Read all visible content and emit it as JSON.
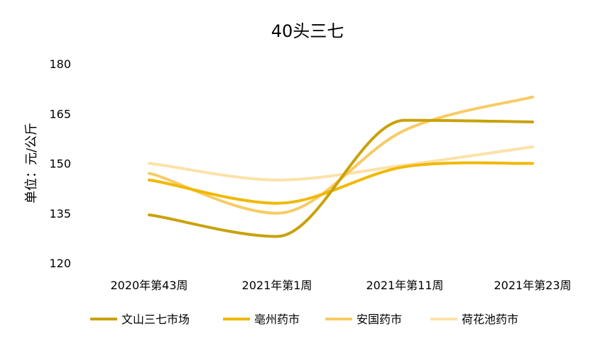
{
  "chart_data": {
    "type": "line",
    "title": "40头三七",
    "ylabel": "单位：元/公斤",
    "xlabel": "",
    "ylim": [
      120,
      180
    ],
    "yticks": [
      120,
      135,
      150,
      165,
      180
    ],
    "categories": [
      "2020年第43周",
      "2021年第1周",
      "2021年第11周",
      "2021年第23周"
    ],
    "grid": false,
    "legend_position": "bottom",
    "smooth": true,
    "series": [
      {
        "name": "文山三七市场",
        "color": "#c9a20a",
        "values": [
          134.5,
          128.0,
          163.0,
          162.5
        ]
      },
      {
        "name": "亳州药市",
        "color": "#f0b800",
        "values": [
          145.0,
          138.0,
          149.0,
          150.0
        ]
      },
      {
        "name": "安国药市",
        "color": "#f8cb63",
        "values": [
          147.0,
          135.0,
          160.0,
          170.0
        ]
      },
      {
        "name": "荷花池药市",
        "color": "#fde1a8",
        "values": [
          150.0,
          145.0,
          149.5,
          155.0
        ]
      }
    ]
  }
}
